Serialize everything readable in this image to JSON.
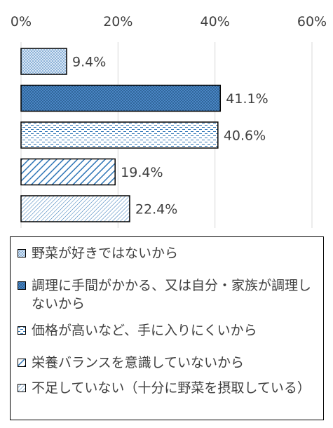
{
  "chart_data": {
    "type": "bar",
    "orientation": "horizontal",
    "x_ticks": [
      "0%",
      "20%",
      "40%",
      "60%"
    ],
    "xlim": [
      0,
      60
    ],
    "grid": true,
    "legend_position": "bottom",
    "series": [
      {
        "name": "野菜が好きではないから",
        "value": 9.4,
        "label": "9.4%",
        "fill": "#dbe7f5",
        "pattern": "dots"
      },
      {
        "name": "調理に手間がかかる、又は自分・家族が調理しないから",
        "value": 41.1,
        "label": "41.1%",
        "fill": "#4a86c6",
        "pattern": "dense-dots"
      },
      {
        "name": "価格が高いなど、手に入りにくいから",
        "value": 40.6,
        "label": "40.6%",
        "fill": "#ffffff",
        "pattern": "dashes"
      },
      {
        "name": "栄養バランスを意識していないから",
        "value": 19.4,
        "label": "19.4%",
        "fill": "#ffffff",
        "pattern": "wide-diagonal"
      },
      {
        "name": "不足していない（十分に野菜を摂取している）",
        "value": 22.4,
        "label": "22.4%",
        "fill": "#ffffff",
        "pattern": "fine-diagonal"
      }
    ]
  },
  "colors": {
    "bar_outline": "#000000",
    "pattern_blue": "#2e75b6",
    "text": "#404040",
    "grid": "#d9d9d9"
  }
}
